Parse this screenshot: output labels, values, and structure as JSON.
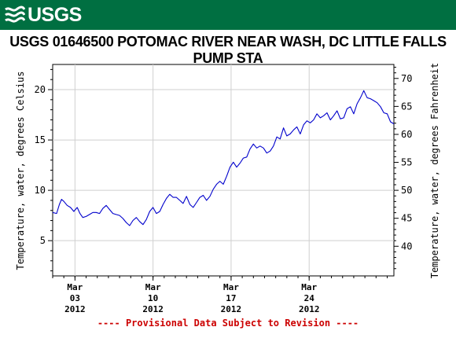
{
  "header": {
    "logo_text": "USGS",
    "logo_icon": "usgs-wave-icon",
    "brand_color": "#006f41"
  },
  "chart_data": {
    "type": "line",
    "title": "USGS 01646500 POTOMAC RIVER NEAR WASH, DC LITTLE FALLS PUMP STA",
    "ylabel": "Temperature, water, degrees Celsius",
    "y2label": "Temperature, water, degrees Fahrenheit",
    "ylim": [
      1.5,
      22.5
    ],
    "yticks": [
      5,
      10,
      15,
      20
    ],
    "y2ticks": [
      40,
      45,
      50,
      55,
      60,
      65,
      70
    ],
    "xlim": [
      0,
      30.6
    ],
    "xticks": [
      {
        "x": 2,
        "month": "Mar",
        "day": "03",
        "year": "2012"
      },
      {
        "x": 9,
        "month": "Mar",
        "day": "10",
        "year": "2012"
      },
      {
        "x": 16,
        "month": "Mar",
        "day": "17",
        "year": "2012"
      },
      {
        "x": 23,
        "month": "Mar",
        "day": "24",
        "year": "2012"
      }
    ],
    "series": [
      {
        "color": "#0000cc",
        "points": [
          [
            0.0,
            7.8
          ],
          [
            0.35,
            7.7
          ],
          [
            0.6,
            8.6
          ],
          [
            0.8,
            9.1
          ],
          [
            1.0,
            8.9
          ],
          [
            1.3,
            8.5
          ],
          [
            1.6,
            8.3
          ],
          [
            1.9,
            7.9
          ],
          [
            2.2,
            8.3
          ],
          [
            2.45,
            7.7
          ],
          [
            2.7,
            7.3
          ],
          [
            3.0,
            7.4
          ],
          [
            3.3,
            7.6
          ],
          [
            3.6,
            7.8
          ],
          [
            3.9,
            7.8
          ],
          [
            4.2,
            7.7
          ],
          [
            4.5,
            8.2
          ],
          [
            4.8,
            8.5
          ],
          [
            5.1,
            8.1
          ],
          [
            5.4,
            7.7
          ],
          [
            5.7,
            7.6
          ],
          [
            6.0,
            7.5
          ],
          [
            6.3,
            7.2
          ],
          [
            6.6,
            6.8
          ],
          [
            6.9,
            6.5
          ],
          [
            7.2,
            7.0
          ],
          [
            7.5,
            7.3
          ],
          [
            7.8,
            6.9
          ],
          [
            8.1,
            6.6
          ],
          [
            8.4,
            7.1
          ],
          [
            8.7,
            7.9
          ],
          [
            9.0,
            8.3
          ],
          [
            9.3,
            7.7
          ],
          [
            9.6,
            7.9
          ],
          [
            9.9,
            8.6
          ],
          [
            10.2,
            9.2
          ],
          [
            10.5,
            9.6
          ],
          [
            10.8,
            9.3
          ],
          [
            11.1,
            9.3
          ],
          [
            11.4,
            9.0
          ],
          [
            11.7,
            8.7
          ],
          [
            12.0,
            9.4
          ],
          [
            12.3,
            8.6
          ],
          [
            12.6,
            8.3
          ],
          [
            12.9,
            8.8
          ],
          [
            13.2,
            9.3
          ],
          [
            13.5,
            9.5
          ],
          [
            13.8,
            9.0
          ],
          [
            14.1,
            9.4
          ],
          [
            14.4,
            10.1
          ],
          [
            14.7,
            10.6
          ],
          [
            15.0,
            10.9
          ],
          [
            15.3,
            10.6
          ],
          [
            15.6,
            11.4
          ],
          [
            15.9,
            12.3
          ],
          [
            16.2,
            12.8
          ],
          [
            16.5,
            12.3
          ],
          [
            16.8,
            12.7
          ],
          [
            17.1,
            13.2
          ],
          [
            17.4,
            13.3
          ],
          [
            17.7,
            14.1
          ],
          [
            18.0,
            14.6
          ],
          [
            18.3,
            14.2
          ],
          [
            18.6,
            14.4
          ],
          [
            18.9,
            14.2
          ],
          [
            19.2,
            13.7
          ],
          [
            19.5,
            13.9
          ],
          [
            19.8,
            14.4
          ],
          [
            20.1,
            15.3
          ],
          [
            20.4,
            15.1
          ],
          [
            20.7,
            16.2
          ],
          [
            21.0,
            15.4
          ],
          [
            21.3,
            15.6
          ],
          [
            21.6,
            16.0
          ],
          [
            21.9,
            16.3
          ],
          [
            22.2,
            15.6
          ],
          [
            22.5,
            16.5
          ],
          [
            22.8,
            16.9
          ],
          [
            23.1,
            16.7
          ],
          [
            23.4,
            17.0
          ],
          [
            23.7,
            17.6
          ],
          [
            24.0,
            17.2
          ],
          [
            24.3,
            17.4
          ],
          [
            24.6,
            17.7
          ],
          [
            24.9,
            17.0
          ],
          [
            25.2,
            17.4
          ],
          [
            25.5,
            17.9
          ],
          [
            25.8,
            17.1
          ],
          [
            26.1,
            17.2
          ],
          [
            26.4,
            18.1
          ],
          [
            26.7,
            18.3
          ],
          [
            27.0,
            17.6
          ],
          [
            27.3,
            18.6
          ],
          [
            27.6,
            19.2
          ],
          [
            27.9,
            19.9
          ],
          [
            28.2,
            19.2
          ],
          [
            28.5,
            19.1
          ],
          [
            28.8,
            18.9
          ],
          [
            29.1,
            18.7
          ],
          [
            29.4,
            18.3
          ],
          [
            29.7,
            17.7
          ],
          [
            30.0,
            17.6
          ],
          [
            30.3,
            16.8
          ],
          [
            30.6,
            16.6
          ]
        ]
      }
    ],
    "grid": true
  },
  "footer": {
    "provisional_note": "---- Provisional Data Subject to Revision ----",
    "note_color": "#cc0000"
  }
}
